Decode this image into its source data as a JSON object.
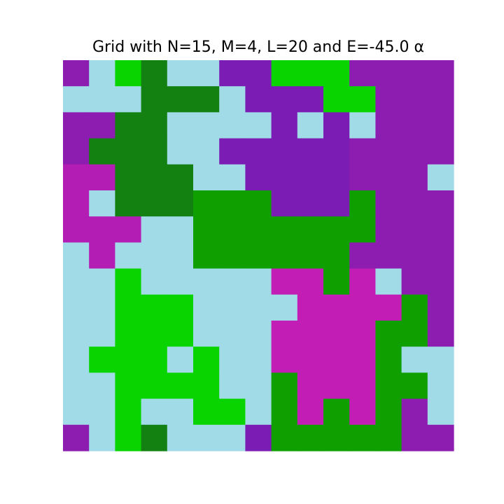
{
  "chart_data": {
    "type": "heatmap",
    "title": "Grid with N=15, M=4, L=20 and E=-45.0 α",
    "rows": 15,
    "cols": 15,
    "palette": {
      "A": "#a2dbe8",
      "B": "#0ad400",
      "C": "#0fa000",
      "D": "#138112",
      "E": "#8d1db0",
      "F": "#7b1cb4",
      "G": "#b31db4",
      "H": "#c21db4"
    },
    "legend": {
      "A": "light blue",
      "B": "bright green",
      "C": "medium green",
      "D": "dark green",
      "E": "purple",
      "F": "violet",
      "G": "magenta",
      "H": "pink magenta"
    },
    "grid": [
      "EABDAAFFBBBEEEE",
      "AAADDDAFFFBBEEE",
      "EEDDAAAAFAFAEEE",
      "EDDDAAFFFFFEEEE",
      "GGDDDAAFFFFEEEA",
      "GADDDCCCFFFCEEE",
      "GGGAACCCCCCCEEE",
      "AGAAACCCCCCEEEE",
      "AABAAAAAHHCHAEE",
      "AABBBAAAAHHHHCE",
      "AABBBAAAHHHHCCE",
      "ABBBABAAHHHHCAA",
      "AABBBBAACHHHCCA",
      "AABAABBACHCHCEA",
      "EABDAAAFCCCCCEE"
    ]
  }
}
